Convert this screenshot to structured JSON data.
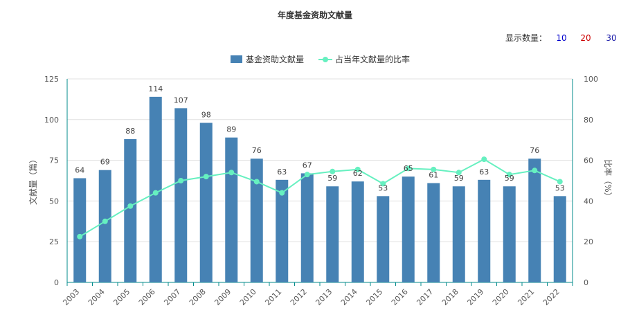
{
  "page_title": "年度基金资助文献量",
  "display_count": {
    "label": "显示数量：",
    "options": [
      {
        "label": "10",
        "color": "#0000cc"
      },
      {
        "label": "20",
        "color": "#cc0000"
      },
      {
        "label": "30",
        "color": "#1a1aa8"
      }
    ]
  },
  "colors": {
    "bar": "#4682b4",
    "line": "#66f0c0",
    "marker": "#66f0c0",
    "axis": "#008b8b",
    "grid": "#e0e0e0"
  },
  "chart_data": {
    "type": "bar",
    "title": "年度基金资助文献量",
    "categories": [
      "2003",
      "2004",
      "2005",
      "2006",
      "2007",
      "2008",
      "2009",
      "2010",
      "2011",
      "2012",
      "2013",
      "2014",
      "2015",
      "2016",
      "2017",
      "2018",
      "2019",
      "2020",
      "2021",
      "2022"
    ],
    "series": [
      {
        "name": "基金资助文献量",
        "type": "bar",
        "axis": "left",
        "values": [
          64,
          69,
          88,
          114,
          107,
          98,
          89,
          76,
          63,
          67,
          59,
          62,
          53,
          65,
          61,
          59,
          63,
          59,
          76,
          53
        ],
        "labels": [
          "64",
          "69",
          "88",
          "114",
          "107",
          "98",
          "89",
          "76",
          "63",
          "67",
          "59",
          "62",
          "53",
          "65",
          "61",
          "59",
          "63",
          "59",
          "76",
          "53"
        ]
      },
      {
        "name": "占当年文献量的比率",
        "type": "line",
        "axis": "right",
        "values": [
          22.5,
          30,
          37.5,
          44,
          50,
          52,
          54,
          49.5,
          44,
          53,
          54.5,
          55.5,
          48.5,
          56,
          55.5,
          54,
          60.5,
          53,
          55,
          49.5
        ]
      }
    ],
    "ylabel": "文献量（篇）",
    "y2label": "比率（%）",
    "ylim": [
      0,
      125
    ],
    "y2lim": [
      0,
      100
    ],
    "yticks": [
      "0",
      "25",
      "50",
      "75",
      "100",
      "125"
    ],
    "y2ticks": [
      "0",
      "20",
      "40",
      "60",
      "80",
      "100"
    ],
    "legend": "top-center",
    "grid": true
  }
}
